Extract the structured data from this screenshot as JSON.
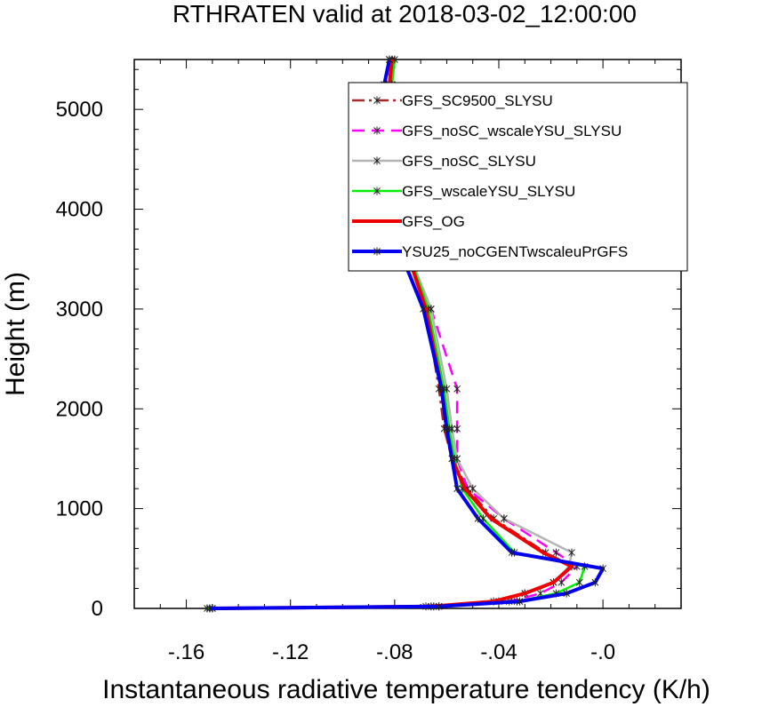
{
  "chart_data": {
    "type": "line",
    "title": "RTHRATEN valid at 2018-03-02_12:00:00",
    "xlabel": "Instantaneous radiative temperature tendency (K/h)",
    "ylabel": "Height (m)",
    "xlim": [
      -0.18,
      0.03
    ],
    "ylim": [
      0,
      5500
    ],
    "x_ticks": [
      {
        "value": -0.16,
        "label": "-.16"
      },
      {
        "value": -0.12,
        "label": "-.12"
      },
      {
        "value": -0.08,
        "label": "-.08"
      },
      {
        "value": -0.04,
        "label": "-.04"
      },
      {
        "value": 0.0,
        "label": "-.0"
      }
    ],
    "y_ticks": [
      {
        "value": 0,
        "label": "0"
      },
      {
        "value": 1000,
        "label": "1000"
      },
      {
        "value": 2000,
        "label": "2000"
      },
      {
        "value": 3000,
        "label": "3000"
      },
      {
        "value": 4000,
        "label": "4000"
      },
      {
        "value": 5000,
        "label": "5000"
      }
    ],
    "legend_position": "top-right",
    "series": [
      {
        "name": "GFS_SC9500_SLYSU",
        "color": "#a52a2a",
        "dash": "dash-dot",
        "marker": "asterisk",
        "x": [
          -0.151,
          -0.066,
          -0.042,
          -0.03,
          -0.019,
          -0.012,
          -0.022,
          -0.042,
          -0.052,
          -0.058,
          -0.061,
          -0.063,
          -0.068,
          -0.081,
          -0.083,
          -0.082,
          -0.081,
          -0.081
        ],
        "y": [
          0,
          20,
          70,
          150,
          260,
          420,
          560,
          900,
          1200,
          1500,
          1800,
          2200,
          3000,
          4100,
          4700,
          5000,
          5250,
          5500
        ]
      },
      {
        "name": "GFS_noSC_wscaleYSU_SLYSU",
        "color": "#ff00ff",
        "dash": "dashed",
        "marker": "asterisk",
        "x": [
          -0.15,
          -0.068,
          -0.036,
          -0.024,
          -0.016,
          -0.01,
          -0.018,
          -0.038,
          -0.052,
          -0.056,
          -0.056,
          -0.056,
          -0.066,
          -0.083,
          -0.086,
          -0.085,
          -0.083,
          -0.082
        ],
        "y": [
          0,
          20,
          70,
          150,
          260,
          420,
          560,
          900,
          1200,
          1500,
          1800,
          2200,
          3000,
          4100,
          4700,
          5000,
          5250,
          5500
        ]
      },
      {
        "name": "GFS_noSC_SLYSU",
        "color": "#b4b4b4",
        "dash": "solid",
        "marker": "asterisk",
        "x": [
          -0.15,
          -0.065,
          -0.04,
          -0.03,
          -0.019,
          -0.013,
          -0.012,
          -0.038,
          -0.05,
          -0.056,
          -0.058,
          -0.06,
          -0.066,
          -0.083,
          -0.085,
          -0.084,
          -0.082,
          -0.082
        ],
        "y": [
          0,
          20,
          70,
          150,
          260,
          420,
          560,
          900,
          1200,
          1500,
          1800,
          2200,
          3000,
          4100,
          4700,
          5000,
          5250,
          5500
        ]
      },
      {
        "name": "GFS_wscaleYSU_SLYSU",
        "color": "#00ee00",
        "dash": "solid",
        "marker": "asterisk",
        "x": [
          -0.152,
          -0.063,
          -0.033,
          -0.018,
          -0.009,
          -0.007,
          -0.034,
          -0.046,
          -0.054,
          -0.057,
          -0.059,
          -0.061,
          -0.067,
          -0.082,
          -0.084,
          -0.083,
          -0.081,
          -0.08
        ],
        "y": [
          0,
          20,
          70,
          150,
          260,
          420,
          560,
          900,
          1200,
          1500,
          1800,
          2200,
          3000,
          4100,
          4700,
          5000,
          5250,
          5500
        ]
      },
      {
        "name": "GFS_OG",
        "color": "#ee0000",
        "dash": "solid",
        "marker": "none",
        "x": [
          -0.151,
          -0.066,
          -0.042,
          -0.03,
          -0.019,
          -0.012,
          -0.023,
          -0.043,
          -0.053,
          -0.058,
          -0.06,
          -0.062,
          -0.068,
          -0.082,
          -0.084,
          -0.083,
          -0.082,
          -0.081
        ],
        "y": [
          0,
          20,
          70,
          150,
          260,
          420,
          560,
          900,
          1200,
          1500,
          1800,
          2200,
          3000,
          4100,
          4700,
          5000,
          5250,
          5500
        ]
      },
      {
        "name": "YSU25_noCGENTwscaleuPrGFS",
        "color": "#0000ee",
        "dash": "solid",
        "marker": "asterisk",
        "x": [
          -0.151,
          -0.063,
          -0.032,
          -0.014,
          -0.003,
          0.0,
          -0.035,
          -0.048,
          -0.056,
          -0.058,
          -0.06,
          -0.062,
          -0.069,
          -0.086,
          -0.088,
          -0.087,
          -0.084,
          -0.082
        ],
        "y": [
          0,
          20,
          70,
          150,
          260,
          400,
          560,
          900,
          1200,
          1500,
          1800,
          2200,
          3000,
          4100,
          4700,
          5000,
          5250,
          5500
        ]
      }
    ]
  }
}
